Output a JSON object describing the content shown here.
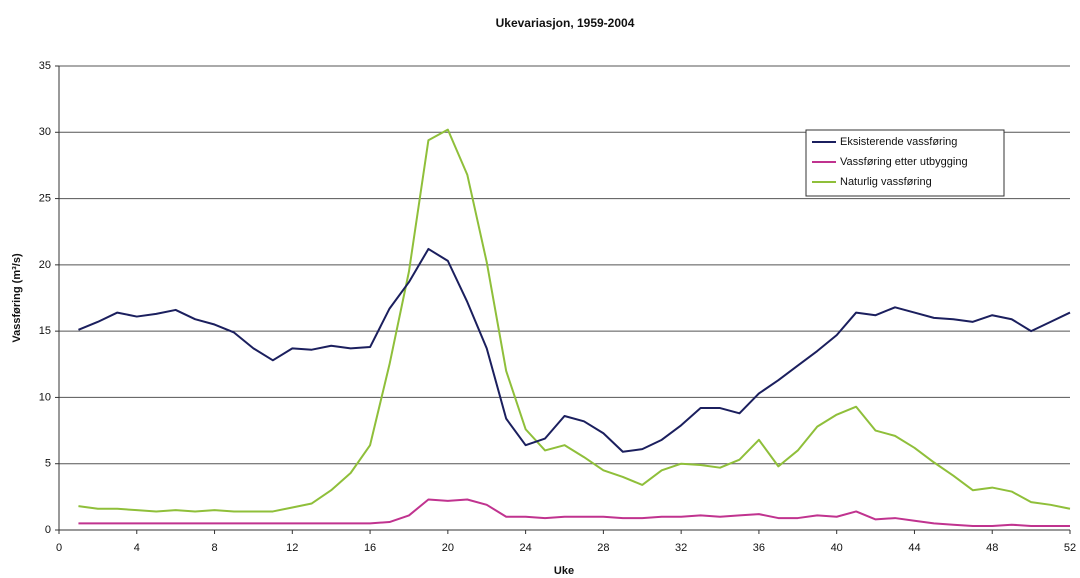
{
  "chart_data": {
    "type": "line",
    "title": "Ukevariasjon, 1959-2004",
    "x_label": "Uke",
    "y_label": "Vassføring (m³/s)",
    "x": [
      1,
      2,
      3,
      4,
      5,
      6,
      7,
      8,
      9,
      10,
      11,
      12,
      13,
      14,
      15,
      16,
      17,
      18,
      19,
      20,
      21,
      22,
      23,
      24,
      25,
      26,
      27,
      28,
      29,
      30,
      31,
      32,
      33,
      34,
      35,
      36,
      37,
      38,
      39,
      40,
      41,
      42,
      43,
      44,
      45,
      46,
      47,
      48,
      49,
      50,
      51,
      52
    ],
    "series": [
      {
        "name": "Eksisterende vassføring",
        "color": "#1b1f5e",
        "values": [
          15.1,
          15.7,
          16.4,
          16.1,
          16.3,
          16.6,
          15.9,
          15.5,
          14.9,
          13.7,
          12.8,
          13.7,
          13.6,
          13.9,
          13.7,
          13.8,
          16.7,
          18.7,
          21.2,
          20.3,
          17.2,
          13.7,
          8.4,
          6.4,
          6.9,
          8.6,
          8.2,
          7.3,
          5.9,
          6.1,
          6.8,
          7.9,
          9.2,
          9.2,
          8.8,
          10.3,
          11.3,
          12.4,
          13.5,
          14.7,
          16.4,
          16.2,
          16.8,
          16.4,
          16.0,
          15.9,
          15.7,
          16.2,
          15.9,
          15.0,
          15.7,
          16.4
        ]
      },
      {
        "name": "Vassføring etter utbygging",
        "color": "#c0338f",
        "values": [
          0.5,
          0.5,
          0.5,
          0.5,
          0.5,
          0.5,
          0.5,
          0.5,
          0.5,
          0.5,
          0.5,
          0.5,
          0.5,
          0.5,
          0.5,
          0.5,
          0.6,
          1.1,
          2.3,
          2.2,
          2.3,
          1.9,
          1.0,
          1.0,
          0.9,
          1.0,
          1.0,
          1.0,
          0.9,
          0.9,
          1.0,
          1.0,
          1.1,
          1.0,
          1.1,
          1.2,
          0.9,
          0.9,
          1.1,
          1.0,
          1.4,
          0.8,
          0.9,
          0.7,
          0.5,
          0.4,
          0.3,
          0.3,
          0.4,
          0.3,
          0.3,
          0.3
        ]
      },
      {
        "name": "Naturlig vassføring",
        "color": "#8fbf3a",
        "values": [
          1.8,
          1.6,
          1.6,
          1.5,
          1.4,
          1.5,
          1.4,
          1.5,
          1.4,
          1.4,
          1.4,
          1.7,
          2.0,
          3.0,
          4.3,
          6.4,
          12.5,
          19.5,
          29.4,
          30.2,
          26.8,
          20.2,
          12.0,
          7.6,
          6.0,
          6.4,
          5.5,
          4.5,
          4.0,
          3.4,
          4.5,
          5.0,
          4.9,
          4.7,
          5.3,
          6.8,
          4.8,
          6.0,
          7.8,
          8.7,
          9.3,
          7.5,
          7.1,
          6.2,
          5.1,
          4.1,
          3.0,
          3.2,
          2.9,
          2.1,
          1.9,
          1.6
        ]
      }
    ],
    "xlim": [
      0,
      52
    ],
    "xticks": [
      0,
      4,
      8,
      12,
      16,
      20,
      24,
      28,
      32,
      36,
      40,
      44,
      48,
      52
    ],
    "ylim": [
      0,
      35
    ],
    "yticks": [
      0,
      5,
      10,
      15,
      20,
      25,
      30,
      35
    ],
    "grid": true,
    "legend": "upper right"
  }
}
